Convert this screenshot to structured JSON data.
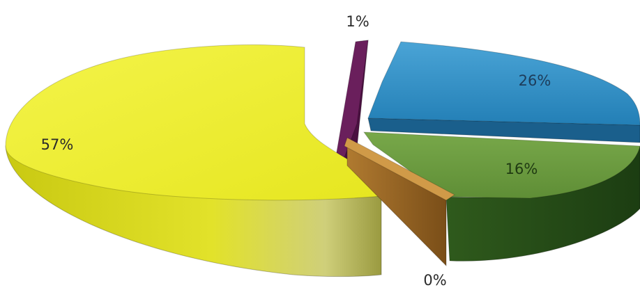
{
  "chart_data": {
    "type": "pie",
    "style": "3d-exploded",
    "slices": [
      {
        "label": "57%",
        "value": 57,
        "color": "#ecec2a"
      },
      {
        "label": "1%",
        "value": 1,
        "color": "#6a1f5c"
      },
      {
        "label": "26%",
        "value": 26,
        "color": "#2e8bc4"
      },
      {
        "label": "16%",
        "value": 16,
        "color": "#6b9a3c"
      },
      {
        "label": "0%",
        "value": 0,
        "color": "#c08a3a"
      }
    ]
  }
}
